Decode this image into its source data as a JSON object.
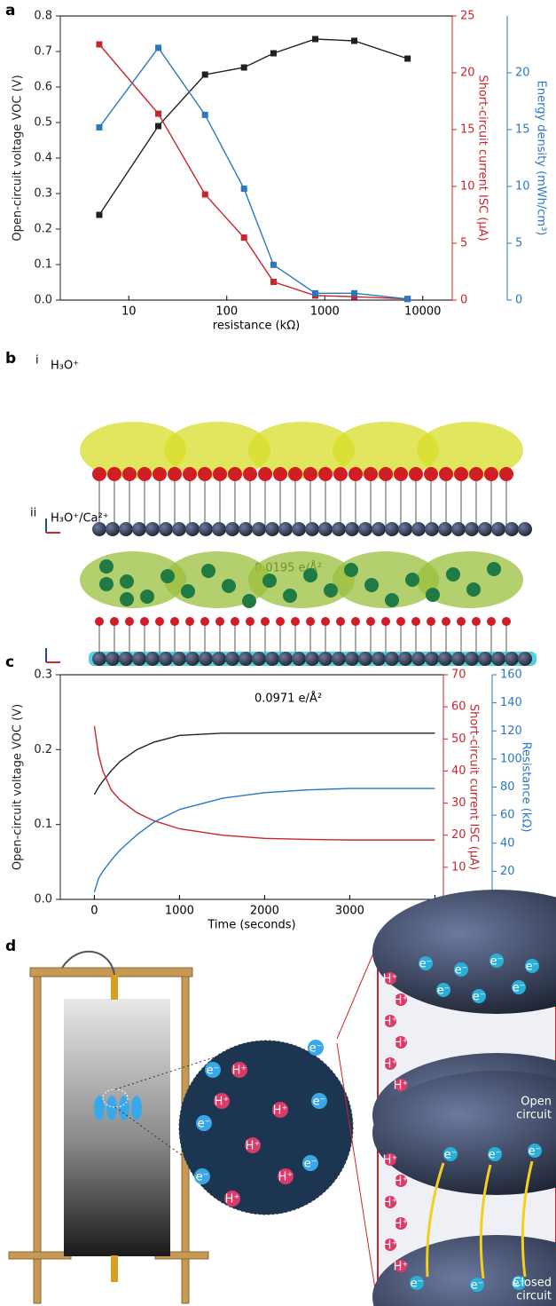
{
  "chart_data": [
    {
      "type": "line",
      "panel_label": "a",
      "markers": true,
      "xscale": "log",
      "x": [
        5,
        20,
        60,
        150,
        300,
        800,
        2000,
        7000
      ],
      "xlim": [
        2,
        20000
      ],
      "xticks": [
        10,
        100,
        1000,
        10000
      ],
      "xlabel": "resistance (kΩ)",
      "ylabel": "Open-circuit voltage VOC (V)",
      "y2label": "Short-circuit current ISC (μA)",
      "y3label": "Energy density (mWh/cm³)",
      "ylim": [
        0,
        0.8
      ],
      "yticks": [
        {
          "value": 0,
          "label": "0.0"
        },
        0.1,
        0.2,
        0.3,
        0.4,
        0.5,
        0.6,
        0.7,
        0.8
      ],
      "y2lim": [
        0,
        25
      ],
      "y2ticks": [
        0,
        5,
        10,
        15,
        20,
        25
      ],
      "y3lim": [
        0,
        25
      ],
      "y3ticks": [
        0,
        5,
        10,
        15,
        20
      ],
      "series": [
        {
          "name": "Open-circuit voltage",
          "color": "#231f20",
          "axis": "y",
          "values": [
            0.24,
            0.49,
            0.635,
            0.655,
            0.695,
            0.735,
            0.73,
            0.68
          ]
        },
        {
          "name": "Short-circuit current",
          "color": "#c8262c",
          "axis": "y2",
          "values": [
            22.5,
            16.4,
            9.3,
            5.5,
            1.6,
            0.4,
            0.3,
            0.1
          ]
        },
        {
          "name": "Energy density",
          "color": "#2a78c0",
          "axis": "y3",
          "values": [
            15.2,
            22.2,
            16.3,
            9.8,
            3.1,
            0.6,
            0.6,
            0.1
          ]
        }
      ]
    },
    {
      "type": "line",
      "panel_label": "c",
      "markers": false,
      "xscale": "linear",
      "x": [
        0,
        50,
        100,
        200,
        300,
        500,
        700,
        1000,
        1500,
        2000,
        2500,
        3000,
        3500,
        4000
      ],
      "xlim": [
        -400,
        4100
      ],
      "xticks": [
        0,
        1000,
        2000,
        3000,
        4000
      ],
      "xlabel": "Time (seconds)",
      "ylabel": "Open-circuit voltage VOC (V)",
      "y2label": "Short-circuit current ISC (μA)",
      "y3label": "Resistance (kΩ)",
      "ylim": [
        0,
        0.3
      ],
      "yticks": [
        {
          "value": 0,
          "label": "0.0"
        },
        0.1,
        0.2,
        0.3
      ],
      "y2lim": [
        0,
        70
      ],
      "y2ticks": [
        0,
        10,
        20,
        30,
        40,
        50,
        60,
        70
      ],
      "y3lim": [
        0,
        160
      ],
      "y3ticks": [
        0,
        20,
        40,
        60,
        80,
        100,
        120,
        140,
        160
      ],
      "series": [
        {
          "name": "Open-circuit voltage",
          "color": "#231f20",
          "axis": "y",
          "values": [
            0.14,
            0.15,
            0.158,
            0.172,
            0.184,
            0.2,
            0.21,
            0.219,
            0.222,
            0.222,
            0.222,
            0.222,
            0.222,
            0.222
          ]
        },
        {
          "name": "Short-circuit current",
          "color": "#c8262c",
          "axis": "y2",
          "values": [
            54,
            45,
            40,
            34,
            31,
            27,
            24.5,
            22,
            20,
            19,
            18.7,
            18.5,
            18.5,
            18.5
          ]
        },
        {
          "name": "Resistance",
          "color": "#2a78c0",
          "axis": "y3",
          "values": [
            5,
            15,
            20,
            28,
            35,
            46,
            55,
            64,
            72,
            76,
            78,
            79,
            79,
            79
          ]
        }
      ]
    }
  ],
  "structure": {
    "panel_label": "b",
    "rows": [
      {
        "label": "i",
        "species": "H₃O⁺",
        "density": "0.0195 e/Å²"
      },
      {
        "label": "ii",
        "species": "H₃O⁺/Ca²⁺",
        "density": "0.0971 e/Å²"
      }
    ]
  },
  "illustration": {
    "panel_label": "d",
    "electron": "e⁻",
    "proton": "H⁺",
    "open": [
      "Open",
      "circuit"
    ],
    "closed": [
      "Closed",
      "circuit"
    ]
  }
}
